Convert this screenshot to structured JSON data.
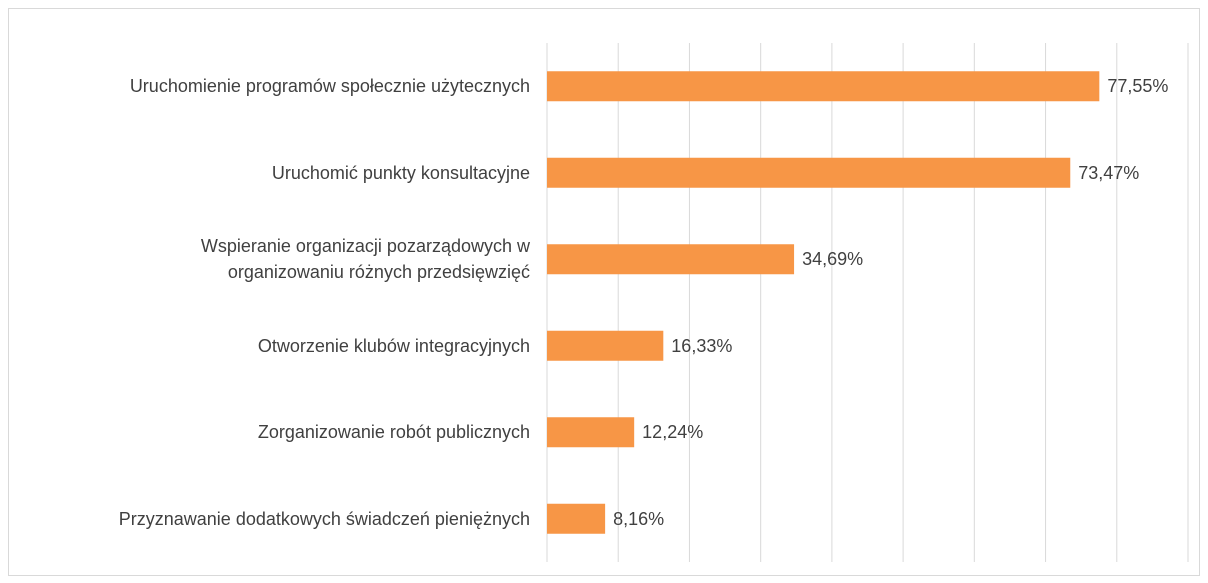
{
  "chart_data": {
    "type": "bar",
    "orientation": "horizontal",
    "categories": [
      "Uruchomienie programów społecznie użytecznych",
      "Uruchomić punkty konsultacyjne",
      "Wspieranie organizacji pozarządowych w\norganizowaniu różnych przedsięwzięć",
      "Otworzenie klubów integracyjnych",
      "Zorganizowanie robót publicznych",
      "Przyznawanie dodatkowych świadczeń pieniężnych"
    ],
    "values": [
      77.55,
      73.47,
      34.69,
      16.33,
      12.24,
      8.16
    ],
    "value_labels": [
      "77,55%",
      "73,47%",
      "34,69%",
      "16,33%",
      "12,24%",
      "8,16%"
    ],
    "color": "#f79646",
    "xlim": [
      0,
      90
    ],
    "xticks": [
      0,
      10,
      20,
      30,
      40,
      50,
      60,
      70,
      80,
      90
    ],
    "grid": true
  }
}
